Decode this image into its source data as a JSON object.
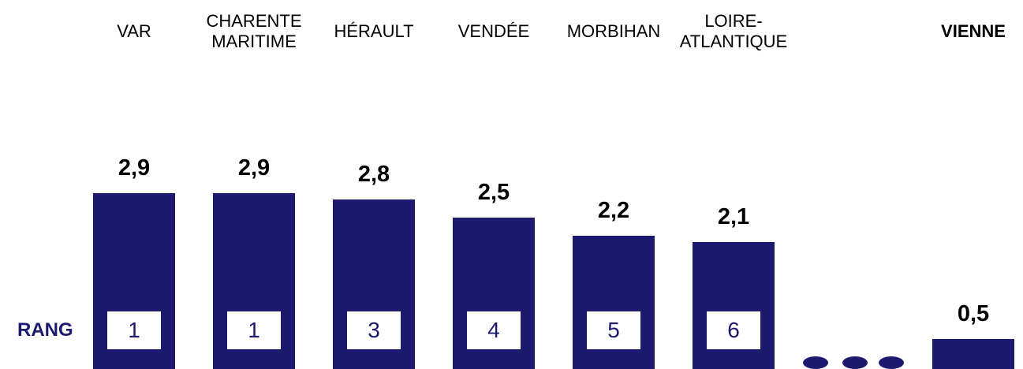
{
  "chart_data": {
    "type": "bar",
    "categories": [
      "VAR",
      "CHARENTE MARITIME",
      "HÉRAULT",
      "VENDÉE",
      "MORBIHAN",
      "LOIRE-ATLANTIQUE",
      "VIENNE"
    ],
    "values": [
      2.9,
      2.9,
      2.8,
      2.5,
      2.2,
      2.1,
      0.5
    ],
    "value_labels": [
      "2,9",
      "2,9",
      "2,8",
      "2,5",
      "2,2",
      "2,1",
      "0,5"
    ],
    "rank_label": "RANG",
    "ranks": [
      1,
      1,
      3,
      4,
      5,
      6,
      null
    ],
    "color": "#1b1a6f"
  }
}
